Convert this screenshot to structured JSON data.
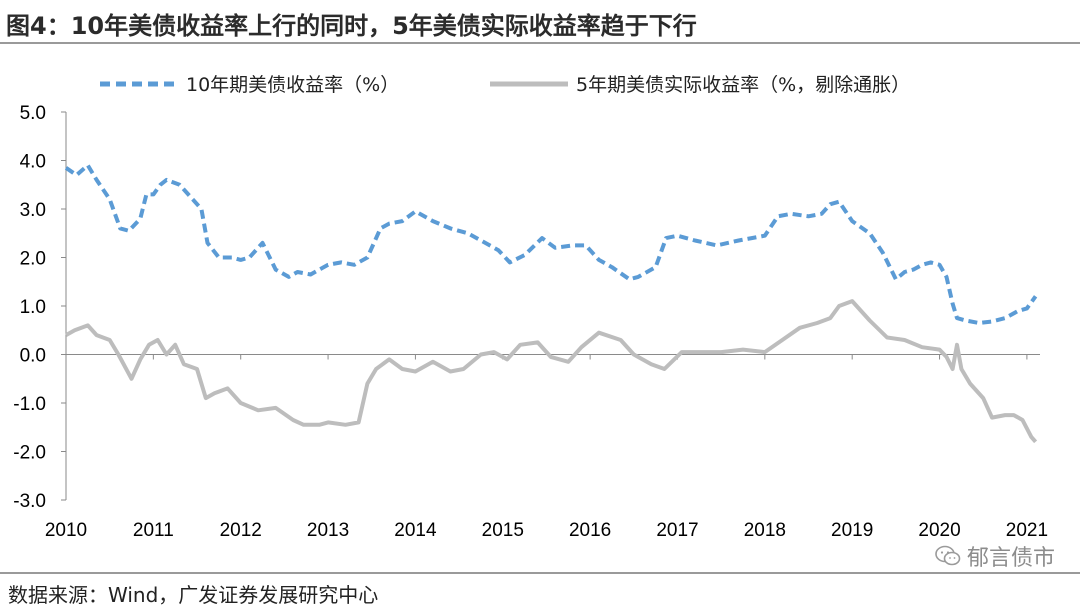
{
  "header": {
    "title": "图4：10年美债收益率上行的同时，5年美债实际收益率趋于下行"
  },
  "footer": {
    "source": "数据来源：Wind，广发证券发展研究中心",
    "watermark": "郁言债市",
    "watermark_icon": "wechat-icon"
  },
  "chart_data": {
    "type": "line",
    "title": "",
    "xlabel": "",
    "ylabel": "",
    "xlim": [
      2010.0,
      2021.15
    ],
    "ylim": [
      -3.0,
      5.0
    ],
    "yticks": [
      "5.0",
      "4.0",
      "3.0",
      "2.0",
      "1.0",
      "0.0",
      "-1.0",
      "-2.0",
      "-3.0"
    ],
    "xticks": [
      "2010",
      "2011",
      "2012",
      "2013",
      "2014",
      "2015",
      "2016",
      "2017",
      "2018",
      "2019",
      "2020",
      "2021"
    ],
    "legend_position": "top",
    "grid": false,
    "series": [
      {
        "name": "10年期美债收益率（%）",
        "color": "#5b9bd5",
        "style": "dashed",
        "x": [
          2010.0,
          2010.12,
          2010.25,
          2010.35,
          2010.5,
          2010.62,
          2010.72,
          2010.85,
          2010.92,
          2011.0,
          2011.08,
          2011.15,
          2011.3,
          2011.45,
          2011.55,
          2011.62,
          2011.75,
          2011.9,
          2012.0,
          2012.1,
          2012.25,
          2012.4,
          2012.55,
          2012.65,
          2012.8,
          2012.9,
          2013.0,
          2013.15,
          2013.3,
          2013.45,
          2013.6,
          2013.7,
          2013.85,
          2014.0,
          2014.2,
          2014.4,
          2014.6,
          2014.8,
          2014.95,
          2015.08,
          2015.25,
          2015.45,
          2015.6,
          2015.8,
          2015.95,
          2016.1,
          2016.25,
          2016.45,
          2016.55,
          2016.75,
          2016.87,
          2017.0,
          2017.2,
          2017.45,
          2017.7,
          2017.85,
          2018.0,
          2018.15,
          2018.3,
          2018.5,
          2018.65,
          2018.75,
          2018.85,
          2019.0,
          2019.2,
          2019.35,
          2019.5,
          2019.6,
          2019.7,
          2019.8,
          2019.9,
          2020.0,
          2020.08,
          2020.15,
          2020.2,
          2020.3,
          2020.45,
          2020.6,
          2020.75,
          2020.9,
          2021.0,
          2021.1
        ],
        "values": [
          3.85,
          3.7,
          3.9,
          3.6,
          3.2,
          2.6,
          2.55,
          2.8,
          3.3,
          3.3,
          3.5,
          3.6,
          3.5,
          3.2,
          3.0,
          2.3,
          2.0,
          2.0,
          1.95,
          2.0,
          2.3,
          1.75,
          1.6,
          1.7,
          1.65,
          1.75,
          1.85,
          1.9,
          1.85,
          2.0,
          2.6,
          2.7,
          2.75,
          2.95,
          2.75,
          2.6,
          2.5,
          2.3,
          2.15,
          1.9,
          2.05,
          2.4,
          2.2,
          2.25,
          2.25,
          1.95,
          1.8,
          1.55,
          1.6,
          1.8,
          2.4,
          2.45,
          2.35,
          2.25,
          2.35,
          2.4,
          2.45,
          2.85,
          2.9,
          2.85,
          2.9,
          3.1,
          3.15,
          2.75,
          2.5,
          2.1,
          1.55,
          1.7,
          1.75,
          1.85,
          1.9,
          1.85,
          1.6,
          1.05,
          0.75,
          0.7,
          0.65,
          0.68,
          0.75,
          0.9,
          0.95,
          1.2
        ]
      },
      {
        "name": "5年期美债实际收益率（%，剔除通胀）",
        "color": "#bdbdbd",
        "style": "solid",
        "x": [
          2010.0,
          2010.1,
          2010.25,
          2010.35,
          2010.5,
          2010.6,
          2010.75,
          2010.85,
          2010.95,
          2011.05,
          2011.15,
          2011.25,
          2011.35,
          2011.5,
          2011.6,
          2011.7,
          2011.85,
          2012.0,
          2012.2,
          2012.4,
          2012.6,
          2012.72,
          2012.9,
          2013.0,
          2013.2,
          2013.35,
          2013.45,
          2013.55,
          2013.7,
          2013.85,
          2014.0,
          2014.2,
          2014.4,
          2014.55,
          2014.75,
          2014.9,
          2015.05,
          2015.2,
          2015.4,
          2015.55,
          2015.75,
          2015.9,
          2016.1,
          2016.35,
          2016.5,
          2016.7,
          2016.85,
          2017.05,
          2017.25,
          2017.5,
          2017.75,
          2018.0,
          2018.2,
          2018.4,
          2018.6,
          2018.75,
          2018.85,
          2019.0,
          2019.2,
          2019.4,
          2019.6,
          2019.8,
          2020.0,
          2020.08,
          2020.15,
          2020.2,
          2020.25,
          2020.35,
          2020.5,
          2020.6,
          2020.75,
          2020.85,
          2020.95,
          2021.05,
          2021.1
        ],
        "values": [
          0.4,
          0.5,
          0.6,
          0.4,
          0.3,
          0.0,
          -0.5,
          -0.1,
          0.2,
          0.3,
          0.0,
          0.2,
          -0.2,
          -0.3,
          -0.9,
          -0.8,
          -0.7,
          -1.0,
          -1.15,
          -1.1,
          -1.35,
          -1.45,
          -1.45,
          -1.4,
          -1.45,
          -1.4,
          -0.6,
          -0.3,
          -0.1,
          -0.3,
          -0.35,
          -0.15,
          -0.35,
          -0.3,
          0.0,
          0.05,
          -0.1,
          0.2,
          0.25,
          -0.05,
          -0.15,
          0.15,
          0.45,
          0.3,
          0.0,
          -0.2,
          -0.3,
          0.05,
          0.05,
          0.05,
          0.1,
          0.05,
          0.3,
          0.55,
          0.65,
          0.75,
          1.0,
          1.1,
          0.7,
          0.35,
          0.3,
          0.15,
          0.1,
          -0.05,
          -0.3,
          0.2,
          -0.3,
          -0.6,
          -0.9,
          -1.3,
          -1.25,
          -1.25,
          -1.35,
          -1.7,
          -1.8
        ]
      }
    ]
  }
}
